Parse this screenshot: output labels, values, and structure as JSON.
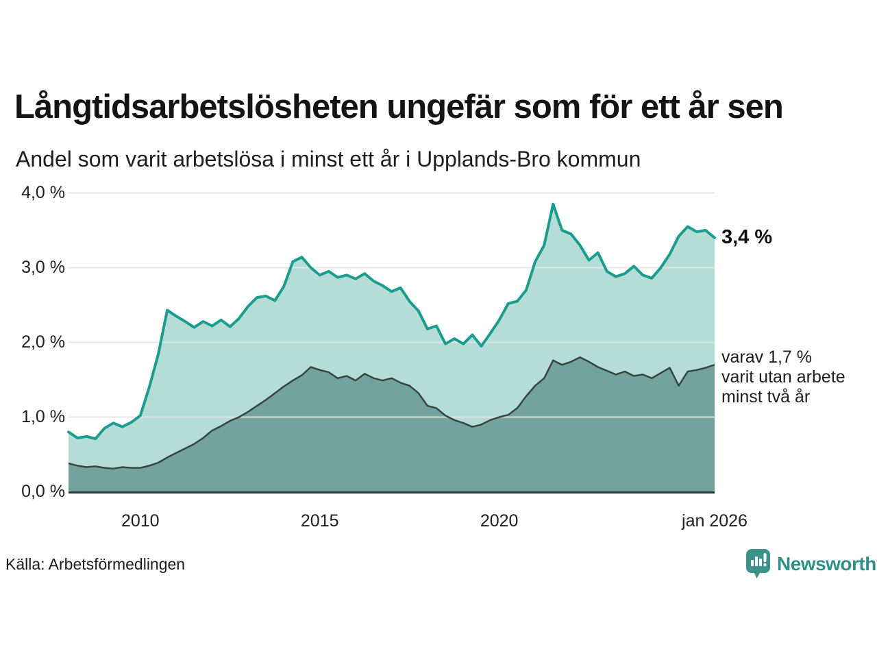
{
  "chart_data": {
    "type": "area",
    "title": "Långtidsarbetslösheten ungefär som för ett år sen",
    "subtitle": "Andel som varit arbetslösa i minst ett år i Upplands-Bro kommun",
    "x_domain": [
      2008,
      2026
    ],
    "x_step": 0.25,
    "ylim": [
      0,
      4
    ],
    "grid": true,
    "legend_position": "none",
    "y_ticks": [
      {
        "v": 0,
        "label": "0,0 %"
      },
      {
        "v": 1,
        "label": "1,0 %"
      },
      {
        "v": 2,
        "label": "2,0 %"
      },
      {
        "v": 3,
        "label": "3,0 %"
      },
      {
        "v": 4,
        "label": "4,0 %"
      }
    ],
    "x_ticks": [
      {
        "x": 2010,
        "label": "2010"
      },
      {
        "x": 2015,
        "label": "2015"
      },
      {
        "x": 2020,
        "label": "2020"
      },
      {
        "x": 2026,
        "label": "jan 2026"
      }
    ],
    "series": [
      {
        "name": "Andel arbetslösa minst ett år",
        "line_color": "#1b9c8e",
        "fill_color": "#b5ddd7",
        "values": [
          0.8,
          0.72,
          0.74,
          0.71,
          0.85,
          0.92,
          0.87,
          0.93,
          1.02,
          1.4,
          1.84,
          2.43,
          2.35,
          2.28,
          2.2,
          2.28,
          2.22,
          2.3,
          2.21,
          2.32,
          2.48,
          2.6,
          2.62,
          2.56,
          2.75,
          3.08,
          3.14,
          3.0,
          2.9,
          2.95,
          2.87,
          2.9,
          2.85,
          2.92,
          2.82,
          2.76,
          2.68,
          2.73,
          2.55,
          2.42,
          2.18,
          2.22,
          1.98,
          2.05,
          1.98,
          2.1,
          1.95,
          2.12,
          2.3,
          2.52,
          2.55,
          2.7,
          3.08,
          3.3,
          3.85,
          3.5,
          3.45,
          3.3,
          3.1,
          3.2,
          2.95,
          2.88,
          2.92,
          3.02,
          2.9,
          2.86,
          3.0,
          3.18,
          3.42,
          3.55,
          3.48,
          3.5,
          3.4
        ]
      },
      {
        "name": "varav utan arbete minst två år",
        "line_color": "#364540",
        "fill_color": "#74a29c",
        "values": [
          0.38,
          0.35,
          0.33,
          0.34,
          0.32,
          0.31,
          0.33,
          0.32,
          0.32,
          0.35,
          0.39,
          0.46,
          0.52,
          0.58,
          0.64,
          0.72,
          0.82,
          0.88,
          0.95,
          1.0,
          1.07,
          1.15,
          1.23,
          1.32,
          1.41,
          1.49,
          1.56,
          1.67,
          1.63,
          1.6,
          1.52,
          1.55,
          1.49,
          1.58,
          1.52,
          1.49,
          1.52,
          1.46,
          1.42,
          1.32,
          1.15,
          1.12,
          1.02,
          0.96,
          0.92,
          0.87,
          0.9,
          0.96,
          1.0,
          1.03,
          1.12,
          1.28,
          1.42,
          1.52,
          1.76,
          1.7,
          1.74,
          1.8,
          1.74,
          1.67,
          1.62,
          1.57,
          1.61,
          1.55,
          1.57,
          1.52,
          1.59,
          1.66,
          1.42,
          1.61,
          1.63,
          1.66,
          1.7
        ]
      }
    ],
    "annotations": {
      "end_label_total": "3,4 %",
      "end_value_total": 3.4,
      "end_label_detail_lines": [
        "varav 1,7 %",
        "varit utan arbete",
        "minst två år"
      ],
      "end_value_detail": 1.7
    }
  },
  "footer": {
    "source": "Källa: Arbetsförmedlingen",
    "brand": "Newsworthy"
  },
  "colors": {
    "accent_teal": "#1b9c8e",
    "light_fill": "#b5ddd7",
    "dark_fill": "#74a29c",
    "dark_line": "#364540",
    "axis_line": "#2b3734",
    "gridline": "#e4e4e4",
    "brand_teal": "#2f9089"
  },
  "icons": {
    "brand_logo": "newsworthy-speech-bubble-barchart-icon"
  }
}
